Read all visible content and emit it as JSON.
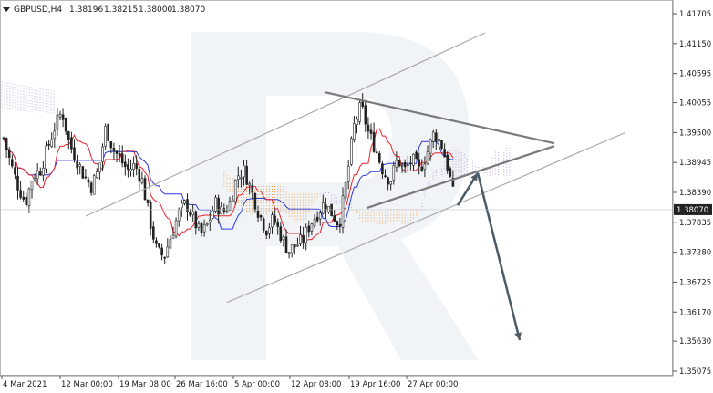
{
  "header": {
    "symbol": "GBPUSD,H4",
    "open": "1.38196",
    "high": "1.38215",
    "low": "1.38000",
    "close": "1.38070"
  },
  "price_axis": {
    "labels": [
      "1.41705",
      "1.41150",
      "1.40595",
      "1.40055",
      "1.39500",
      "1.38945",
      "1.38390",
      "1.37835",
      "1.37280",
      "1.36725",
      "1.36170",
      "1.35630",
      "1.35075"
    ],
    "current_price": "1.38070"
  },
  "time_axis": {
    "labels": [
      "4 Mar 2021",
      "12 Mar 00:00",
      "19 Mar 08:00",
      "26 Mar 16:00",
      "5 Apr 00:00",
      "12 Apr 08:00",
      "19 Apr 16:00",
      "27 Apr 00:00"
    ]
  },
  "colors": {
    "candle": "#222222",
    "tenkan": "#e8242a",
    "kijun": "#2d3bdb",
    "cloud_bear": "#f08a28",
    "cloud_bull": "#a98fd8",
    "channel": "#aaaaaa",
    "triangle": "#7a7a7a",
    "arrow": "#4a5a66",
    "price_tag_bg": "#222222",
    "watermark": "#dde3ea"
  },
  "chart_data": {
    "type": "candlestick",
    "title": "GBPUSD,H4",
    "ylim": [
      1.35,
      1.421
    ],
    "x_ticks": [
      "4 Mar 2021",
      "12 Mar 00:00",
      "19 Mar 08:00",
      "26 Mar 16:00",
      "5 Apr 00:00",
      "12 Apr 08:00",
      "19 Apr 16:00",
      "27 Apr 00:00"
    ],
    "y_ticks": [
      1.41705,
      1.4115,
      1.40595,
      1.40055,
      1.395,
      1.38945,
      1.3839,
      1.37835,
      1.3728,
      1.36725,
      1.3617,
      1.3563,
      1.35075
    ],
    "last_price": 1.3807,
    "close_path": [
      [
        0,
        1.394
      ],
      [
        8,
        1.389
      ],
      [
        16,
        1.385
      ],
      [
        24,
        1.382
      ],
      [
        32,
        1.387
      ],
      [
        40,
        1.388
      ],
      [
        48,
        1.392
      ],
      [
        56,
        1.396
      ],
      [
        64,
        1.399
      ],
      [
        72,
        1.393
      ],
      [
        80,
        1.39
      ],
      [
        88,
        1.387
      ],
      [
        96,
        1.385
      ],
      [
        104,
        1.388
      ],
      [
        112,
        1.396
      ],
      [
        120,
        1.392
      ],
      [
        128,
        1.39
      ],
      [
        136,
        1.388
      ],
      [
        144,
        1.389
      ],
      [
        152,
        1.386
      ],
      [
        160,
        1.379
      ],
      [
        168,
        1.373
      ],
      [
        176,
        1.372
      ],
      [
        184,
        1.376
      ],
      [
        192,
        1.38
      ],
      [
        200,
        1.382
      ],
      [
        208,
        1.379
      ],
      [
        216,
        1.376
      ],
      [
        224,
        1.378
      ],
      [
        232,
        1.382
      ],
      [
        240,
        1.38
      ],
      [
        248,
        1.382
      ],
      [
        256,
        1.387
      ],
      [
        264,
        1.388
      ],
      [
        272,
        1.384
      ],
      [
        280,
        1.38
      ],
      [
        288,
        1.377
      ],
      [
        296,
        1.379
      ],
      [
        304,
        1.376
      ],
      [
        312,
        1.373
      ],
      [
        320,
        1.374
      ],
      [
        328,
        1.375
      ],
      [
        336,
        1.378
      ],
      [
        344,
        1.38
      ],
      [
        352,
        1.382
      ],
      [
        360,
        1.38
      ],
      [
        368,
        1.378
      ],
      [
        376,
        1.386
      ],
      [
        384,
        1.396
      ],
      [
        392,
        1.4
      ],
      [
        400,
        1.395
      ],
      [
        408,
        1.392
      ],
      [
        416,
        1.388
      ],
      [
        424,
        1.386
      ],
      [
        432,
        1.39
      ],
      [
        440,
        1.388
      ],
      [
        448,
        1.39
      ],
      [
        456,
        1.388
      ],
      [
        464,
        1.391
      ],
      [
        472,
        1.395
      ],
      [
        480,
        1.393
      ],
      [
        488,
        1.388
      ],
      [
        496,
        1.381
      ]
    ],
    "channel_lines": [
      {
        "name": "upper",
        "from": [
          90,
          1.3795
        ],
        "to": [
          528,
          1.4135
        ]
      },
      {
        "name": "lower",
        "from": [
          245,
          1.3635
        ],
        "to": [
          682,
          1.395
        ]
      }
    ],
    "triangle_lines": [
      {
        "name": "upper",
        "from": [
          352,
          1.4025
        ],
        "to": [
          604,
          1.393
        ]
      },
      {
        "name": "lower",
        "from": [
          398,
          1.381
        ],
        "to": [
          604,
          1.3925
        ]
      }
    ],
    "forecast_arrows": [
      {
        "name": "bounce",
        "from": [
          498,
          1.3815
        ],
        "to": [
          520,
          1.3875
        ]
      },
      {
        "name": "drop",
        "from": [
          520,
          1.3875
        ],
        "to": [
          566,
          1.3565
        ]
      }
    ]
  }
}
